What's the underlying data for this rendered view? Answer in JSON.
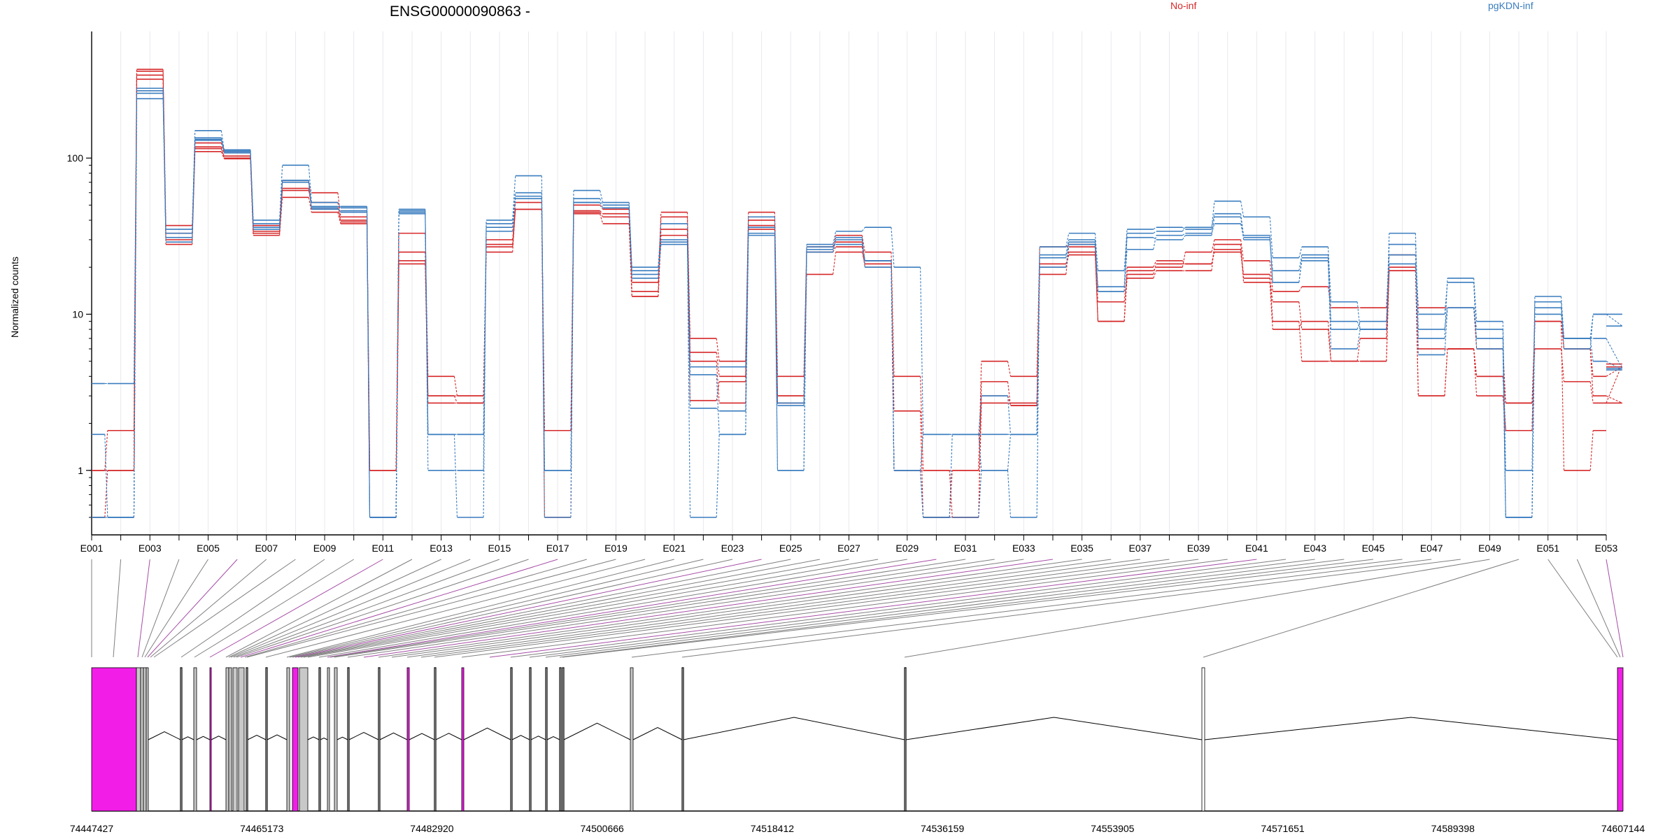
{
  "title": "ENSG00000090863 -",
  "legend": [
    {
      "label": "No-inf",
      "color": "#d62728"
    },
    {
      "label": "pgKDN-inf",
      "color": "#3a7dbf"
    }
  ],
  "exon_highlight_color": "#f21ee8",
  "chart_data": {
    "type": "line",
    "ylabel": "Normalized counts",
    "yscale": "log",
    "ylim": [
      0.5,
      500
    ],
    "yticks": [
      1,
      10,
      100
    ],
    "ytick_labels": [
      "1",
      "10",
      "100"
    ],
    "xtick_labels": [
      "E001",
      "E003",
      "E005",
      "E007",
      "E009",
      "E011",
      "E013",
      "E015",
      "E017",
      "E019",
      "E021",
      "E023",
      "E025",
      "E027",
      "E029",
      "E031",
      "E033",
      "E035",
      "E037",
      "E039",
      "E041",
      "E043",
      "E045",
      "E047",
      "E049",
      "E051",
      "E053"
    ],
    "exons": [
      "E001",
      "E002",
      "E003",
      "E004",
      "E005",
      "E006",
      "E007",
      "E008",
      "E009",
      "E010",
      "E011",
      "E012",
      "E013",
      "E014",
      "E015",
      "E016",
      "E017",
      "E018",
      "E019",
      "E020",
      "E021",
      "E022",
      "E023",
      "E024",
      "E025",
      "E026",
      "E027",
      "E028",
      "E029",
      "E030",
      "E031",
      "E032",
      "E033",
      "E034",
      "E035",
      "E036",
      "E037",
      "E038",
      "E039",
      "E040",
      "E041",
      "E042",
      "E043",
      "E044",
      "E045",
      "E046",
      "E047",
      "E048",
      "E049",
      "E050",
      "E051",
      "E052",
      "E053"
    ],
    "series": [
      {
        "group": "No-inf",
        "values": [
          1,
          1,
          370,
          37,
          125,
          108,
          37,
          70,
          60,
          42,
          1,
          33,
          4,
          3,
          30,
          47,
          1.8,
          50,
          47,
          16,
          45,
          7,
          5,
          45,
          4,
          27,
          32,
          25,
          4,
          1,
          1,
          5,
          4,
          27,
          28,
          9,
          17,
          19,
          19,
          28,
          16,
          8,
          9,
          5,
          5,
          20,
          3,
          6,
          4,
          1.8,
          9,
          1,
          1.8
        ]
      },
      {
        "group": "No-inf",
        "values": [
          1,
          1.8,
          340,
          33,
          118,
          103,
          34,
          62,
          52,
          40,
          1,
          25,
          3,
          2.7,
          28,
          52,
          1.8,
          46,
          44,
          14,
          42,
          5.7,
          4,
          40,
          3,
          26,
          29,
          22,
          1,
          0.5,
          1,
          3,
          2.6,
          21,
          25,
          9,
          20,
          22,
          21,
          26,
          18,
          9,
          5,
          5,
          5,
          19,
          3,
          6,
          3,
          1.8,
          9,
          6,
          3,
          2.7
        ]
      },
      {
        "group": "No-inf",
        "values": [
          0.5,
          1,
          320,
          30,
          110,
          99,
          32,
          56,
          45,
          38,
          0.5,
          22,
          2.7,
          2.7,
          27,
          47,
          0.5,
          44,
          38,
          13,
          35,
          5,
          2.7,
          37,
          2.7,
          25,
          27,
          20,
          1,
          1,
          0.5,
          2.7,
          2.7,
          20,
          24,
          12,
          18,
          21,
          21,
          25,
          17,
          12,
          8,
          5,
          7,
          19,
          6,
          6,
          4,
          2.7,
          9,
          6,
          4,
          4.6
        ]
      },
      {
        "group": "No-inf",
        "values": [
          1,
          1,
          360,
          28,
          115,
          100,
          33,
          64,
          48,
          39,
          1,
          21,
          3,
          3,
          25,
          47,
          1.8,
          45,
          42,
          13,
          32,
          2.8,
          3.7,
          35,
          3,
          18,
          25,
          21,
          2.4,
          0.5,
          0.5,
          3.7,
          2.6,
          18,
          27,
          9,
          19,
          20,
          25,
          30,
          22,
          14,
          15,
          11,
          11,
          24,
          11,
          11,
          6,
          2.7,
          6,
          3.7,
          2.7,
          4.8
        ]
      },
      {
        "group": "pgKDN-inf",
        "values": [
          3.6,
          3.6,
          260,
          35,
          150,
          113,
          40,
          90,
          52,
          48,
          0.5,
          47,
          1.7,
          0.5,
          40,
          77,
          0.5,
          62,
          52,
          20,
          38,
          4.6,
          4.6,
          42,
          2.7,
          28,
          34,
          36,
          20,
          1.7,
          1.7,
          1.7,
          1.7,
          27,
          33,
          19,
          35,
          36,
          35,
          53,
          42,
          23,
          27,
          12,
          8,
          33,
          7,
          17,
          9,
          1,
          13,
          7,
          10,
          10
        ]
      },
      {
        "group": "pgKDN-inf",
        "values": [
          1.7,
          0.5,
          240,
          31,
          130,
          110,
          38,
          72,
          48,
          45,
          0.5,
          45,
          1,
          1,
          36,
          60,
          1,
          55,
          50,
          19,
          29,
          0.5,
          1.7,
          32,
          1,
          25,
          30,
          22,
          1,
          0.5,
          0.5,
          1,
          0.5,
          24,
          30,
          14,
          31,
          30,
          32,
          42,
          30,
          19,
          24,
          9,
          8,
          28,
          10,
          16,
          6,
          0.5,
          12,
          6,
          10,
          8.4
        ]
      },
      {
        "group": "pgKDN-inf",
        "values": [
          0.5,
          0.5,
          280,
          29,
          132,
          112,
          36,
          70,
          47,
          46,
          0.5,
          46,
          1.7,
          1.7,
          34,
          55,
          1,
          52,
          48,
          18,
          30,
          2.5,
          2.4,
          36,
          2.6,
          26,
          31,
          20,
          1,
          1.7,
          1.7,
          1,
          1.7,
          20,
          28,
          14,
          26,
          32,
          33,
          38,
          31,
          16,
          23,
          6,
          8,
          21,
          5.5,
          11,
          7,
          0.5,
          10,
          7,
          7,
          4.5
        ]
      },
      {
        "group": "pgKDN-inf",
        "values": [
          0.5,
          0.5,
          270,
          33,
          135,
          108,
          35,
          72,
          49,
          49,
          0.5,
          44,
          1.7,
          1.7,
          38,
          57,
          1,
          52,
          48,
          17,
          28,
          4.1,
          1.7,
          33,
          1,
          27,
          28,
          22,
          1,
          0.5,
          1.7,
          3,
          1.7,
          23,
          29,
          15,
          33,
          34,
          36,
          44,
          32,
          16,
          22,
          8,
          9,
          24,
          8,
          11,
          8,
          0.5,
          11,
          7,
          5,
          4.4
        ]
      }
    ],
    "transcript_coordinates": [
      "74447427",
      "74465173",
      "74482920",
      "74500666",
      "74518412",
      "74536159",
      "74553905",
      "74571651",
      "74589398",
      "74607144"
    ]
  }
}
